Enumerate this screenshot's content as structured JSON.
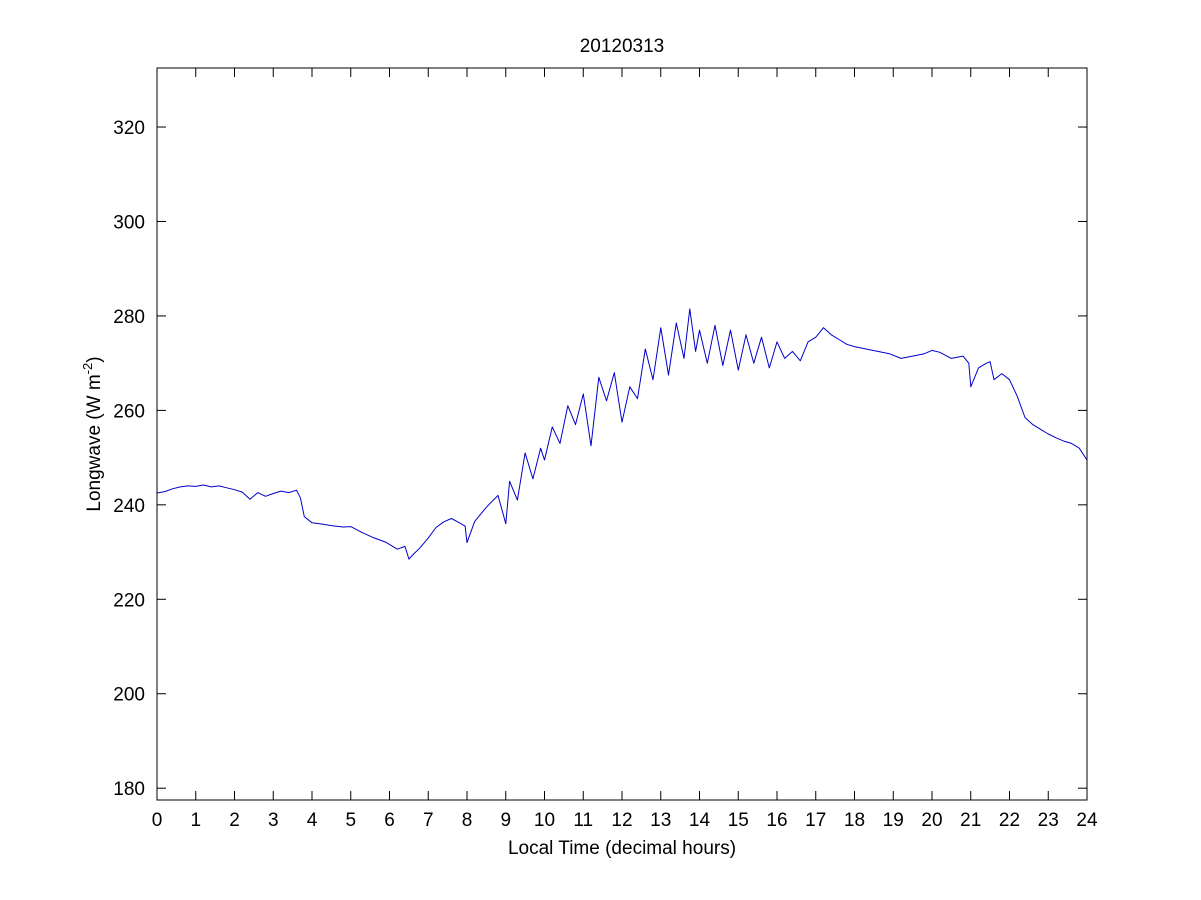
{
  "chart_data": {
    "type": "line",
    "title": "20120313",
    "xlabel": "Local Time (decimal hours)",
    "ylabel": {
      "prefix": "Longwave (W m",
      "superscript": "-2",
      "suffix": ")"
    },
    "xlim": [
      0,
      24
    ],
    "ylim": [
      177.5,
      332.5
    ],
    "xticks": [
      0,
      1,
      2,
      3,
      4,
      5,
      6,
      7,
      8,
      9,
      10,
      11,
      12,
      13,
      14,
      15,
      16,
      17,
      18,
      19,
      20,
      21,
      22,
      23,
      24
    ],
    "yticks": [
      180,
      200,
      220,
      240,
      260,
      280,
      300,
      320
    ],
    "grid": false,
    "line_color": "#0000cc",
    "series": [
      {
        "x": [
          0,
          0.2,
          0.4,
          0.6,
          0.8,
          1.0,
          1.2,
          1.4,
          1.6,
          1.8,
          2.0,
          2.2,
          2.4,
          2.6,
          2.8,
          3.0,
          3.2,
          3.4,
          3.6,
          3.7,
          3.8,
          4.0,
          4.2,
          4.5,
          4.8,
          5.0,
          5.3,
          5.6,
          5.9,
          6.2,
          6.4,
          6.5,
          6.6,
          6.8,
          7.0,
          7.2,
          7.4,
          7.6,
          7.8,
          7.95,
          8.0,
          8.2,
          8.5,
          8.8,
          9.0,
          9.1,
          9.3,
          9.5,
          9.7,
          9.9,
          10.0,
          10.2,
          10.4,
          10.6,
          10.8,
          11.0,
          11.2,
          11.4,
          11.6,
          11.8,
          12.0,
          12.2,
          12.4,
          12.6,
          12.8,
          13.0,
          13.2,
          13.4,
          13.6,
          13.75,
          13.9,
          14.0,
          14.2,
          14.4,
          14.6,
          14.8,
          15.0,
          15.2,
          15.4,
          15.6,
          15.8,
          16.0,
          16.2,
          16.4,
          16.6,
          16.8,
          17.0,
          17.2,
          17.4,
          17.6,
          17.8,
          18.0,
          18.3,
          18.6,
          18.9,
          19.2,
          19.5,
          19.8,
          20.0,
          20.2,
          20.5,
          20.8,
          20.95,
          21.0,
          21.2,
          21.4,
          21.5,
          21.6,
          21.8,
          22.0,
          22.2,
          22.4,
          22.6,
          22.8,
          23.0,
          23.2,
          23.4,
          23.6,
          23.8,
          24.0
        ],
        "y": [
          242.5,
          242.8,
          243.4,
          243.8,
          244.0,
          243.9,
          244.2,
          243.8,
          244.0,
          243.6,
          243.2,
          242.7,
          241.2,
          242.6,
          241.8,
          242.4,
          242.9,
          242.6,
          243.1,
          241.5,
          237.5,
          236.2,
          236.0,
          235.6,
          235.3,
          235.4,
          234.1,
          233.0,
          232.1,
          230.6,
          231.2,
          228.5,
          229.4,
          231.0,
          233.0,
          235.2,
          236.4,
          237.1,
          236.2,
          235.5,
          232.0,
          236.5,
          239.5,
          242.0,
          236.0,
          245.0,
          241.0,
          251.0,
          245.5,
          252.0,
          249.5,
          256.5,
          253.0,
          261.0,
          257.0,
          263.5,
          252.5,
          267.0,
          262.0,
          268.0,
          257.5,
          265.0,
          262.5,
          273.0,
          266.5,
          277.5,
          267.5,
          278.5,
          271.0,
          281.5,
          272.5,
          277.0,
          270.0,
          278.0,
          269.5,
          277.0,
          268.5,
          276.0,
          270.0,
          275.5,
          269.0,
          274.5,
          271.0,
          272.5,
          270.5,
          274.5,
          275.5,
          277.5,
          276.0,
          275.0,
          274.0,
          273.5,
          273.0,
          272.5,
          272.0,
          271.0,
          271.5,
          272.0,
          272.7,
          272.3,
          271.0,
          271.5,
          270.0,
          265.0,
          269.0,
          270.0,
          270.3,
          266.5,
          267.8,
          266.5,
          263.0,
          258.5,
          257.0,
          256.0,
          255.0,
          254.2,
          253.5,
          253.0,
          252.0,
          249.5
        ]
      }
    ]
  }
}
